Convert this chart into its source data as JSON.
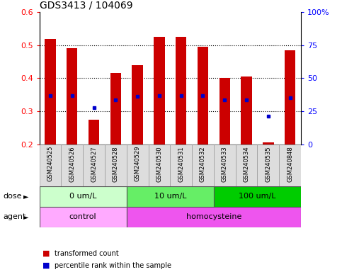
{
  "title": "GDS3413 / 104069",
  "samples": [
    "GSM240525",
    "GSM240526",
    "GSM240527",
    "GSM240528",
    "GSM240529",
    "GSM240530",
    "GSM240531",
    "GSM240532",
    "GSM240533",
    "GSM240534",
    "GSM240535",
    "GSM240848"
  ],
  "transformed_count": [
    0.52,
    0.49,
    0.275,
    0.415,
    0.44,
    0.525,
    0.525,
    0.495,
    0.4,
    0.405,
    0.205,
    0.485
  ],
  "percentile_rank": [
    0.348,
    0.348,
    0.31,
    0.335,
    0.345,
    0.348,
    0.348,
    0.348,
    0.335,
    0.335,
    0.285,
    0.34
  ],
  "ymin": 0.2,
  "ymax": 0.6,
  "y_ticks": [
    0.2,
    0.3,
    0.4,
    0.5,
    0.6
  ],
  "right_y_ticks": [
    0,
    25,
    50,
    75,
    100
  ],
  "right_y_labels": [
    "0",
    "25",
    "50",
    "75",
    "100%"
  ],
  "bar_color": "#cc0000",
  "dot_color": "#0000cc",
  "bg_color": "#ffffff",
  "dose_groups": [
    {
      "label": "0 um/L",
      "start": 0,
      "end": 4,
      "color": "#ccffcc"
    },
    {
      "label": "10 um/L",
      "start": 4,
      "end": 8,
      "color": "#66ee66"
    },
    {
      "label": "100 um/L",
      "start": 8,
      "end": 12,
      "color": "#00cc00"
    }
  ],
  "agent_groups": [
    {
      "label": "control",
      "start": 0,
      "end": 4,
      "color": "#ffaaff"
    },
    {
      "label": "homocysteine",
      "start": 4,
      "end": 12,
      "color": "#ee55ee"
    }
  ],
  "dose_label": "dose",
  "agent_label": "agent",
  "title_fontsize": 10,
  "tick_fontsize": 8
}
